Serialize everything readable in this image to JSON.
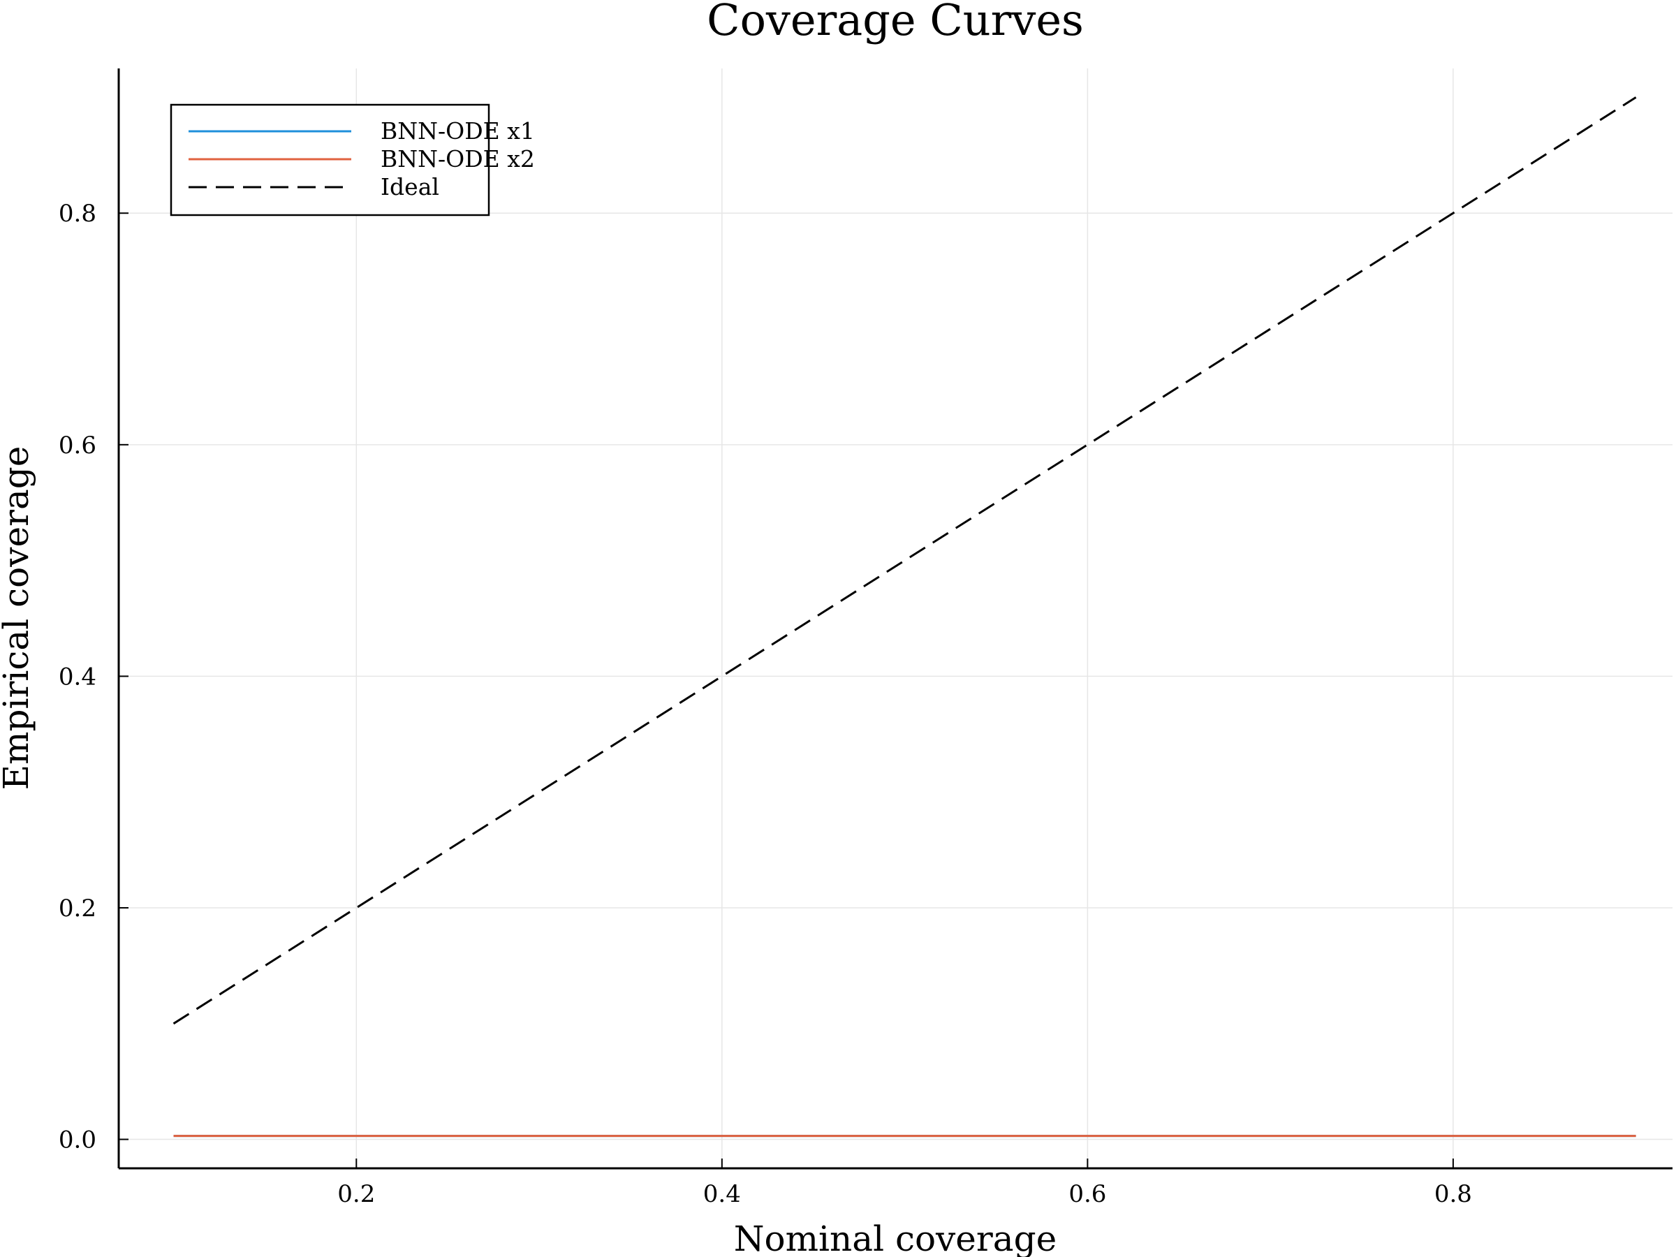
{
  "chart_data": {
    "type": "line",
    "title": "Coverage Curves",
    "xlabel": "Nominal coverage",
    "ylabel": "Empirical coverage",
    "xlim": [
      0.07,
      0.92
    ],
    "ylim": [
      -0.025,
      0.925
    ],
    "xticks": [
      0.2,
      0.4,
      0.6,
      0.8
    ],
    "xtick_labels": [
      "0.2",
      "0.4",
      "0.6",
      "0.8"
    ],
    "yticks": [
      0.0,
      0.2,
      0.4,
      0.6,
      0.8
    ],
    "ytick_labels": [
      "0.0",
      "0.2",
      "0.4",
      "0.6",
      "0.8"
    ],
    "grid": true,
    "legend_position": "top-left",
    "series": [
      {
        "name": "BNN-ODE x1",
        "color": "#1f8fdb",
        "style": "solid",
        "x": [
          0.1,
          0.2,
          0.3,
          0.4,
          0.5,
          0.6,
          0.7,
          0.8,
          0.9
        ],
        "y": [
          0.003,
          0.003,
          0.003,
          0.003,
          0.003,
          0.003,
          0.003,
          0.003,
          0.003
        ]
      },
      {
        "name": "BNN-ODE x2",
        "color": "#e0623f",
        "style": "solid",
        "x": [
          0.1,
          0.2,
          0.3,
          0.4,
          0.5,
          0.6,
          0.7,
          0.8,
          0.9
        ],
        "y": [
          0.003,
          0.003,
          0.003,
          0.003,
          0.003,
          0.003,
          0.003,
          0.003,
          0.003
        ]
      },
      {
        "name": "Ideal",
        "color": "#000000",
        "style": "dashed",
        "x": [
          0.1,
          0.9
        ],
        "y": [
          0.1,
          0.9
        ]
      }
    ]
  }
}
